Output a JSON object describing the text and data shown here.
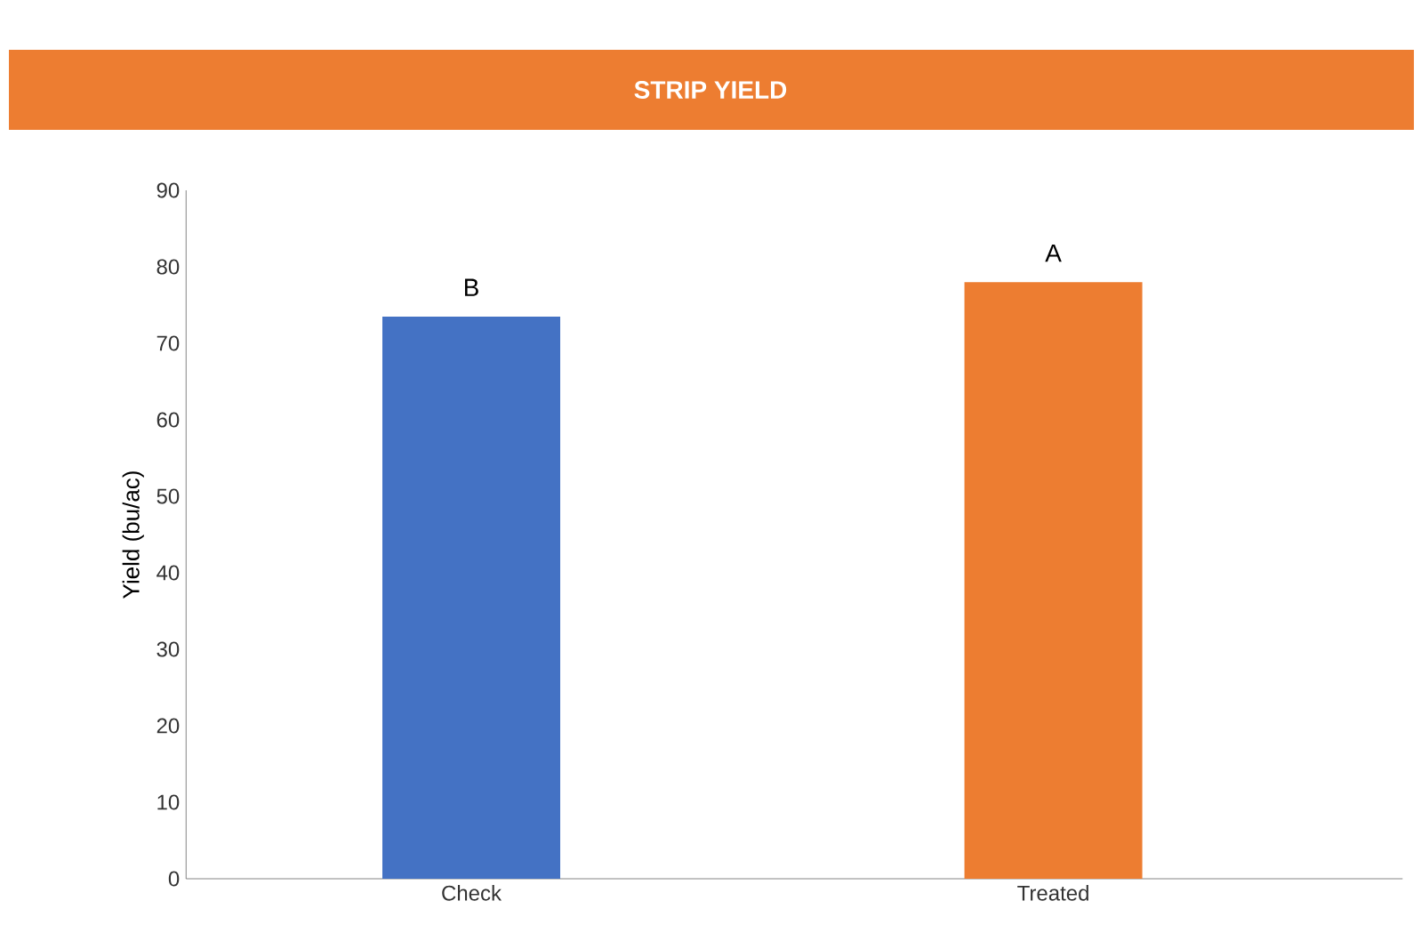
{
  "chart_data": {
    "type": "bar",
    "title": "STRIP YIELD",
    "ylabel": "Yield (bu/ac)",
    "categories": [
      "Check",
      "Treated"
    ],
    "values": [
      73.5,
      78
    ],
    "colors": [
      "#4472c4",
      "#ed7d31"
    ],
    "ylim": [
      0,
      90
    ],
    "yticks": [
      0,
      10,
      20,
      30,
      40,
      50,
      60,
      70,
      80,
      90
    ],
    "annotations": [
      {
        "text": "B",
        "x": "Check",
        "y": 73.5
      },
      {
        "text": "A",
        "x": "Treated",
        "y": 78
      }
    ]
  }
}
